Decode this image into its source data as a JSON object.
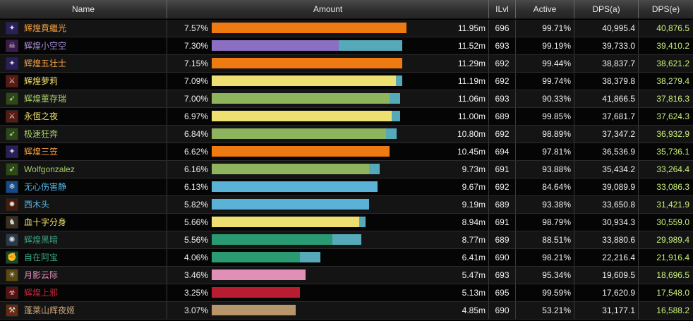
{
  "headers": {
    "name": "Name",
    "amount": "Amount",
    "ilvl": "ILvl",
    "active": "Active",
    "dps_a": "DPS(a)",
    "dps_e": "DPS(e)"
  },
  "rows": [
    {
      "name": "辉煌賁繼光",
      "name_color": "#f5a040",
      "icon": "shadow-magic-icon",
      "icon_bg": "#2a1f5c",
      "icon_glyph": "✦",
      "pct": "7.57%",
      "bar_main": 0.95,
      "bar_extra": 0.0,
      "bar_color": "#ef7a12",
      "amount": "11.95m",
      "ilvl": "696",
      "active": "99.71%",
      "dps_a": "40,995.4",
      "dps_e": "40,876.5"
    },
    {
      "name": "辉煌小空空",
      "name_color": "#a88ed6",
      "icon": "demon-portrait-icon",
      "icon_bg": "#3a1a4a",
      "icon_glyph": "☠",
      "pct": "7.30%",
      "bar_main": 0.62,
      "bar_extra": 0.31,
      "bar_color": "#8a6fc2",
      "amount": "11.52m",
      "ilvl": "693",
      "active": "99.19%",
      "dps_a": "39,733.0",
      "dps_e": "39,410.2"
    },
    {
      "name": "辉煌五壮士",
      "name_color": "#f5a040",
      "icon": "shadow-magic-icon",
      "icon_bg": "#2a1f5c",
      "icon_glyph": "✦",
      "pct": "7.15%",
      "bar_main": 0.93,
      "bar_extra": 0.0,
      "bar_color": "#ef7a12",
      "amount": "11.29m",
      "ilvl": "692",
      "active": "99.44%",
      "dps_a": "38,837.7",
      "dps_e": "38,621.2"
    },
    {
      "name": "辉煌萝莉",
      "name_color": "#f0e068",
      "icon": "rogue-blade-icon",
      "icon_bg": "#5a1a12",
      "icon_glyph": "⚔",
      "pct": "7.09%",
      "bar_main": 0.9,
      "bar_extra": 0.03,
      "bar_color": "#eee070",
      "amount": "11.19m",
      "ilvl": "692",
      "active": "99.74%",
      "dps_a": "38,379.8",
      "dps_e": "38,279.4"
    },
    {
      "name": "辉煌董存瑞",
      "name_color": "#a6cf68",
      "icon": "hunter-beast-icon",
      "icon_bg": "#2d4a14",
      "icon_glyph": "➶",
      "pct": "7.00%",
      "bar_main": 0.87,
      "bar_extra": 0.05,
      "bar_color": "#8fb45e",
      "amount": "11.06m",
      "ilvl": "693",
      "active": "90.33%",
      "dps_a": "41,866.5",
      "dps_e": "37,816.3"
    },
    {
      "name": "永恆之夜",
      "name_color": "#f0e068",
      "icon": "rogue-blade-icon",
      "icon_bg": "#5a1a12",
      "icon_glyph": "⚔",
      "pct": "6.97%",
      "bar_main": 0.88,
      "bar_extra": 0.04,
      "bar_color": "#eee070",
      "amount": "11.00m",
      "ilvl": "689",
      "active": "99.85%",
      "dps_a": "37,681.7",
      "dps_e": "37,624.3"
    },
    {
      "name": "极速狂奔",
      "name_color": "#a6cf68",
      "icon": "hunter-beast-icon",
      "icon_bg": "#2d4a14",
      "icon_glyph": "➶",
      "pct": "6.84%",
      "bar_main": 0.85,
      "bar_extra": 0.05,
      "bar_color": "#8fb45e",
      "amount": "10.80m",
      "ilvl": "692",
      "active": "98.89%",
      "dps_a": "37,347.2",
      "dps_e": "36,932.9"
    },
    {
      "name": "辉煌三笠",
      "name_color": "#f5a040",
      "icon": "shadow-magic-icon",
      "icon_bg": "#2a1f5c",
      "icon_glyph": "✦",
      "pct": "6.62%",
      "bar_main": 0.87,
      "bar_extra": 0.0,
      "bar_color": "#ef7a12",
      "amount": "10.45m",
      "ilvl": "694",
      "active": "97.81%",
      "dps_a": "36,536.9",
      "dps_e": "35,736.1"
    },
    {
      "name": "Wolfgonzalez",
      "name_color": "#a6cf68",
      "icon": "hunter-beast-icon",
      "icon_bg": "#2d4a14",
      "icon_glyph": "➶",
      "pct": "6.16%",
      "bar_main": 0.77,
      "bar_extra": 0.05,
      "bar_color": "#8fb45e",
      "amount": "9.73m",
      "ilvl": "691",
      "active": "93.88%",
      "dps_a": "35,434.2",
      "dps_e": "33,264.4"
    },
    {
      "name": "无心伤害静",
      "name_color": "#58b6e8",
      "icon": "frost-magic-icon",
      "icon_bg": "#124a8a",
      "icon_glyph": "❄",
      "pct": "6.13%",
      "bar_main": 0.81,
      "bar_extra": 0.0,
      "bar_color": "#5ab3d6",
      "amount": "9.67m",
      "ilvl": "692",
      "active": "84.64%",
      "dps_a": "39,089.9",
      "dps_e": "33,086.3"
    },
    {
      "name": "西木头",
      "name_color": "#58b6e8",
      "icon": "fire-magic-icon",
      "icon_bg": "#4a1a08",
      "icon_glyph": "✹",
      "pct": "5.82%",
      "bar_main": 0.77,
      "bar_extra": 0.0,
      "bar_color": "#5ab3d6",
      "amount": "9.19m",
      "ilvl": "689",
      "active": "93.38%",
      "dps_a": "33,650.8",
      "dps_e": "31,421.9"
    },
    {
      "name": "血十字分身",
      "name_color": "#f0e068",
      "icon": "hooded-figure-icon",
      "icon_bg": "#3a3020",
      "icon_glyph": "♞",
      "pct": "5.66%",
      "bar_main": 0.72,
      "bar_extra": 0.03,
      "bar_color": "#eee070",
      "amount": "8.94m",
      "ilvl": "691",
      "active": "98.79%",
      "dps_a": "30,934.3",
      "dps_e": "30,559.0"
    },
    {
      "name": "辉煌黑暗",
      "name_color": "#3aa383",
      "icon": "wolf-spirit-icon",
      "icon_bg": "#2a3a4a",
      "icon_glyph": "✺",
      "pct": "5.56%",
      "bar_main": 0.59,
      "bar_extra": 0.14,
      "bar_color": "#2a9a72",
      "amount": "8.77m",
      "ilvl": "689",
      "active": "88.51%",
      "dps_a": "33,880.6",
      "dps_e": "29,989.4"
    },
    {
      "name": "自在阿宝",
      "name_color": "#3aa383",
      "icon": "monk-fist-icon",
      "icon_bg": "#1a4a2a",
      "icon_glyph": "✊",
      "pct": "4.06%",
      "bar_main": 0.43,
      "bar_extra": 0.1,
      "bar_color": "#2a9a72",
      "amount": "6.41m",
      "ilvl": "690",
      "active": "98.21%",
      "dps_a": "22,216.4",
      "dps_e": "21,916.4"
    },
    {
      "name": "月影云际",
      "name_color": "#e08fb6",
      "icon": "holy-light-icon",
      "icon_bg": "#5a4a10",
      "icon_glyph": "☀",
      "pct": "3.46%",
      "bar_main": 0.46,
      "bar_extra": 0.0,
      "bar_color": "#e08fb6",
      "amount": "5.47m",
      "ilvl": "693",
      "active": "95.34%",
      "dps_a": "19,609.5",
      "dps_e": "18,696.5"
    },
    {
      "name": "辉煌上邪",
      "name_color": "#c2283a",
      "icon": "death-skull-icon",
      "icon_bg": "#5a1010",
      "icon_glyph": "☣",
      "pct": "3.25%",
      "bar_main": 0.43,
      "bar_extra": 0.0,
      "bar_color": "#b81c30",
      "amount": "5.13m",
      "ilvl": "695",
      "active": "99.59%",
      "dps_a": "17,620.9",
      "dps_e": "17,548.0"
    },
    {
      "name": "蓬莱山辉夜姬",
      "name_color": "#c8a47a",
      "icon": "warrior-strike-icon",
      "icon_bg": "#6a2a10",
      "icon_glyph": "⚒",
      "pct": "3.07%",
      "bar_main": 0.41,
      "bar_extra": 0.0,
      "bar_color": "#b8966c",
      "amount": "4.85m",
      "ilvl": "690",
      "active": "53.21%",
      "dps_a": "31,177.1",
      "dps_e": "16,588.2"
    }
  ]
}
